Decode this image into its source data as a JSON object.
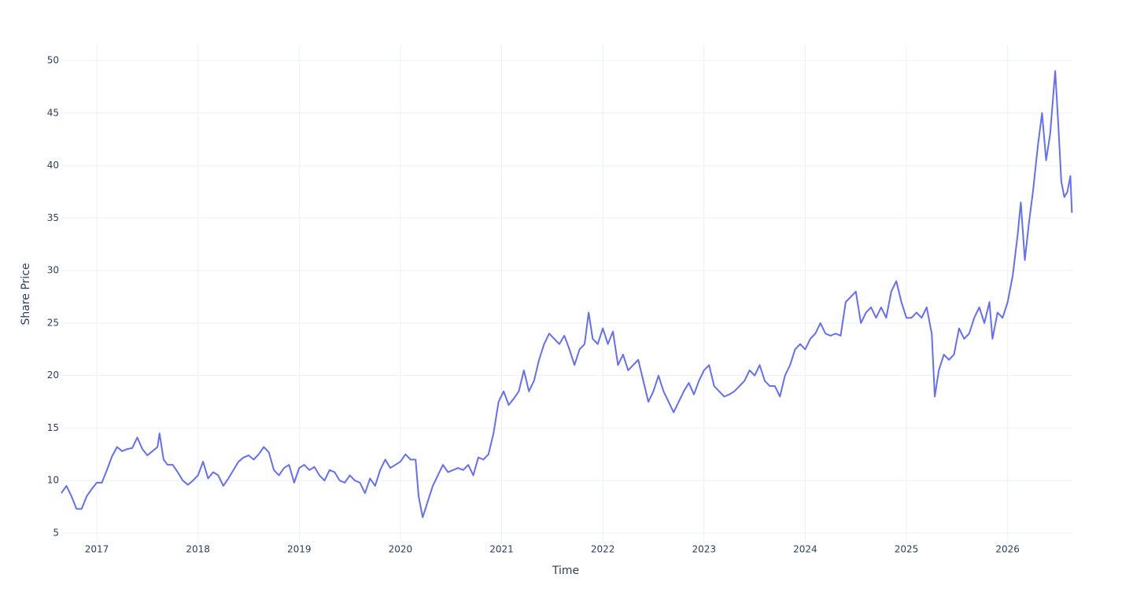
{
  "chart_data": {
    "type": "line",
    "x_label": "Time",
    "y_label": "Share Price",
    "color": "#636efa",
    "grid": true,
    "xlim": [
      2016.65,
      2026.64
    ],
    "xticks": [
      2017,
      2018,
      2019,
      2020,
      2021,
      2022,
      2023,
      2024,
      2025,
      2026
    ],
    "ylim": [
      4.1,
      51.5
    ],
    "yticks": [
      5,
      10,
      15,
      20,
      25,
      30,
      35,
      40,
      45,
      50
    ],
    "x": [
      2016.65,
      2016.7,
      2016.75,
      2016.8,
      2016.85,
      2016.9,
      2016.95,
      2017.0,
      2017.05,
      2017.1,
      2017.15,
      2017.2,
      2017.25,
      2017.3,
      2017.35,
      2017.4,
      2017.45,
      2017.5,
      2017.55,
      2017.6,
      2017.62,
      2017.66,
      2017.7,
      2017.75,
      2017.8,
      2017.85,
      2017.9,
      2017.95,
      2018.0,
      2018.05,
      2018.1,
      2018.15,
      2018.2,
      2018.25,
      2018.3,
      2018.35,
      2018.4,
      2018.45,
      2018.5,
      2018.55,
      2018.6,
      2018.65,
      2018.7,
      2018.75,
      2018.8,
      2018.85,
      2018.9,
      2018.95,
      2019.0,
      2019.05,
      2019.1,
      2019.15,
      2019.2,
      2019.25,
      2019.3,
      2019.35,
      2019.4,
      2019.45,
      2019.5,
      2019.55,
      2019.6,
      2019.65,
      2019.7,
      2019.75,
      2019.8,
      2019.85,
      2019.9,
      2019.95,
      2020.0,
      2020.05,
      2020.1,
      2020.15,
      2020.18,
      2020.22,
      2020.27,
      2020.32,
      2020.37,
      2020.42,
      2020.47,
      2020.52,
      2020.57,
      2020.62,
      2020.67,
      2020.72,
      2020.77,
      2020.82,
      2020.87,
      2020.92,
      2020.97,
      2021.02,
      2021.07,
      2021.12,
      2021.17,
      2021.22,
      2021.27,
      2021.32,
      2021.37,
      2021.42,
      2021.47,
      2021.52,
      2021.57,
      2021.62,
      2021.67,
      2021.72,
      2021.77,
      2021.82,
      2021.86,
      2021.9,
      2021.95,
      2022.0,
      2022.05,
      2022.1,
      2022.15,
      2022.2,
      2022.25,
      2022.3,
      2022.35,
      2022.4,
      2022.45,
      2022.5,
      2022.55,
      2022.6,
      2022.65,
      2022.7,
      2022.75,
      2022.8,
      2022.85,
      2022.9,
      2022.95,
      2023.0,
      2023.05,
      2023.1,
      2023.15,
      2023.2,
      2023.25,
      2023.3,
      2023.35,
      2023.4,
      2023.45,
      2023.5,
      2023.55,
      2023.6,
      2023.65,
      2023.7,
      2023.75,
      2023.8,
      2023.85,
      2023.9,
      2023.95,
      2024.0,
      2024.05,
      2024.1,
      2024.15,
      2024.2,
      2024.25,
      2024.3,
      2024.35,
      2024.4,
      2024.45,
      2024.5,
      2024.55,
      2024.6,
      2024.65,
      2024.7,
      2024.75,
      2024.8,
      2024.85,
      2024.9,
      2024.95,
      2025.0,
      2025.05,
      2025.1,
      2025.15,
      2025.2,
      2025.25,
      2025.28,
      2025.32,
      2025.37,
      2025.42,
      2025.47,
      2025.52,
      2025.57,
      2025.62,
      2025.67,
      2025.72,
      2025.77,
      2025.82,
      2025.85,
      2025.9,
      2025.95,
      2026.0,
      2026.05,
      2026.1,
      2026.13,
      2026.17,
      2026.21,
      2026.25,
      2026.3,
      2026.34,
      2026.38,
      2026.42,
      2026.47,
      2026.5,
      2026.53,
      2026.56,
      2026.59,
      2026.62,
      2026.635
    ],
    "values": [
      8.8,
      9.5,
      8.5,
      7.3,
      7.3,
      8.5,
      9.2,
      9.8,
      9.8,
      11.0,
      12.3,
      13.2,
      12.8,
      13.0,
      13.1,
      14.1,
      13.0,
      12.4,
      12.8,
      13.2,
      14.5,
      12.0,
      11.5,
      11.5,
      10.8,
      10.0,
      9.6,
      10.0,
      10.5,
      11.8,
      10.2,
      10.8,
      10.5,
      9.5,
      10.2,
      11.0,
      11.8,
      12.2,
      12.4,
      12.0,
      12.5,
      13.2,
      12.7,
      11.0,
      10.5,
      11.2,
      11.5,
      9.8,
      11.2,
      11.5,
      11.0,
      11.3,
      10.5,
      10.0,
      11.0,
      10.8,
      10.0,
      9.8,
      10.5,
      10.0,
      9.8,
      8.8,
      10.2,
      9.5,
      11.0,
      12.0,
      11.2,
      11.5,
      11.8,
      12.5,
      12.0,
      12.0,
      8.5,
      6.5,
      8.0,
      9.5,
      10.5,
      11.5,
      10.8,
      11.0,
      11.2,
      11.0,
      11.5,
      10.5,
      12.2,
      12.0,
      12.5,
      14.5,
      17.5,
      18.5,
      17.2,
      17.8,
      18.5,
      20.5,
      18.5,
      19.5,
      21.5,
      23.0,
      24.0,
      23.5,
      23.0,
      23.8,
      22.5,
      21.0,
      22.5,
      23.0,
      26.0,
      23.5,
      23.0,
      24.5,
      23.0,
      24.2,
      21.0,
      22.0,
      20.5,
      21.0,
      21.5,
      19.5,
      17.5,
      18.5,
      20.0,
      18.5,
      17.5,
      16.5,
      17.5,
      18.5,
      19.3,
      18.2,
      19.5,
      20.5,
      21.0,
      19.0,
      18.5,
      18.0,
      18.2,
      18.5,
      19.0,
      19.5,
      20.5,
      20.0,
      21.0,
      19.5,
      19.0,
      19.0,
      18.0,
      20.0,
      21.0,
      22.5,
      23.0,
      22.5,
      23.5,
      24.0,
      25.0,
      24.0,
      23.8,
      24.0,
      23.8,
      27.0,
      27.5,
      28.0,
      25.0,
      26.0,
      26.5,
      25.5,
      26.5,
      25.5,
      28.0,
      29.0,
      27.0,
      25.5,
      25.5,
      26.0,
      25.5,
      26.5,
      24.0,
      18.0,
      20.5,
      22.0,
      21.5,
      22.0,
      24.5,
      23.5,
      24.0,
      25.5,
      26.5,
      25.0,
      27.0,
      23.5,
      26.0,
      25.5,
      27.0,
      29.5,
      33.5,
      36.5,
      31.0,
      34.5,
      37.5,
      42.0,
      45.0,
      40.5,
      43.0,
      49.0,
      44.0,
      38.5,
      37.0,
      37.5,
      39.0,
      35.5
    ]
  }
}
